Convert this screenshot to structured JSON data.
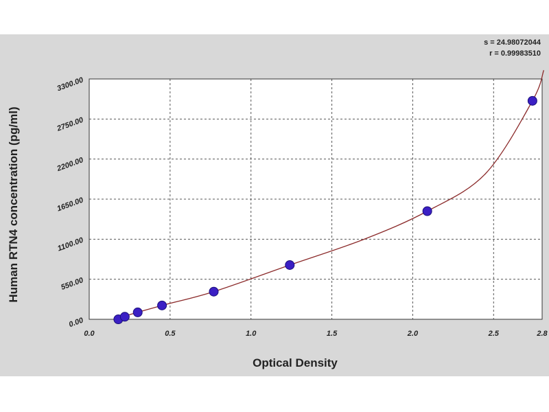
{
  "stats": {
    "s_line": "s = 24.98072044",
    "r_line": "r = 0.99983510"
  },
  "chart_data": {
    "type": "scatter",
    "xlabel": "Optical Density",
    "ylabel": "Human RTN4 concentration (pg/ml)",
    "xlim": [
      0,
      2.8
    ],
    "ylim": [
      0,
      3300
    ],
    "x_ticks": [
      "0.0",
      "0.5",
      "1.0",
      "1.5",
      "2.0",
      "2.5",
      "2.8"
    ],
    "y_ticks": [
      "0.00",
      "550.00",
      "1100.00",
      "1650.00",
      "2200.00",
      "2750.00",
      "3300.00"
    ],
    "grid": true,
    "points": [
      {
        "x": 0.18,
        "y": 0
      },
      {
        "x": 0.22,
        "y": 35
      },
      {
        "x": 0.3,
        "y": 95
      },
      {
        "x": 0.45,
        "y": 190
      },
      {
        "x": 0.77,
        "y": 380
      },
      {
        "x": 1.24,
        "y": 745
      },
      {
        "x": 2.09,
        "y": 1485
      },
      {
        "x": 2.74,
        "y": 3000
      }
    ],
    "curve": [
      {
        "x": 0.15,
        "y": 0
      },
      {
        "x": 0.45,
        "y": 190
      },
      {
        "x": 0.77,
        "y": 380
      },
      {
        "x": 1.24,
        "y": 745
      },
      {
        "x": 1.7,
        "y": 1100
      },
      {
        "x": 2.09,
        "y": 1485
      },
      {
        "x": 2.45,
        "y": 2000
      },
      {
        "x": 2.74,
        "y": 3000
      },
      {
        "x": 2.81,
        "y": 3420
      }
    ],
    "colors": {
      "marker": "#3b1fc4",
      "marker_edge": "#1a0f7a",
      "curve": "#8b2a2a",
      "grid": "#555555",
      "plot_bg": "#ffffff",
      "frame_bg": "#d8d8d8"
    }
  }
}
